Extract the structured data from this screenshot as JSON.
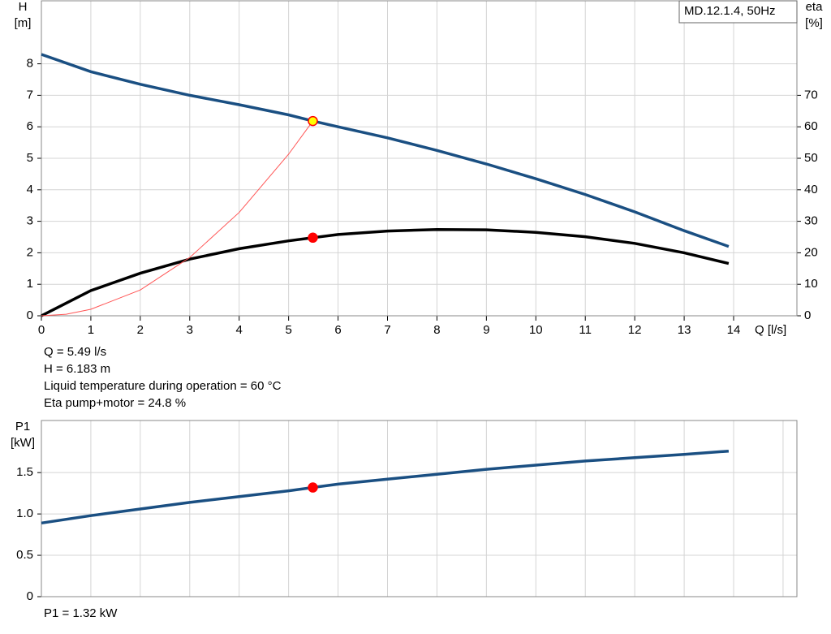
{
  "chart_data": [
    {
      "type": "line",
      "model": "MD.12.1.4, 50Hz",
      "x_label": "Q [l/s]",
      "y_label": [
        "H",
        "[m]"
      ],
      "y2_label": [
        "eta",
        "[%]"
      ],
      "xlim": [
        0,
        15.28
      ],
      "xticks": [
        0,
        1,
        2,
        3,
        4,
        5,
        6,
        7,
        8,
        9,
        10,
        11,
        12,
        13,
        14
      ],
      "x_tick_labels": true,
      "ylim": [
        0,
        10
      ],
      "yticks": [
        0,
        1,
        2,
        3,
        4,
        5,
        6,
        7,
        8
      ],
      "y2lim": [
        0,
        100
      ],
      "y2ticks": [
        0,
        10,
        20,
        30,
        40,
        50,
        60,
        70
      ],
      "grid": true,
      "series": [
        {
          "color": "#1a4f82",
          "width": 3.5,
          "x": [
            0,
            1,
            2,
            3,
            4,
            5,
            5.49,
            6,
            7,
            8,
            9,
            10,
            11,
            12,
            13,
            13.9
          ],
          "values": [
            8.3,
            7.75,
            7.35,
            7.0,
            6.7,
            6.38,
            6.183,
            6.0,
            5.65,
            5.25,
            4.82,
            4.35,
            3.85,
            3.3,
            2.7,
            2.2
          ]
        },
        {
          "color": "#000000",
          "width": 3.5,
          "axis": "y2",
          "x": [
            0,
            1,
            2,
            3,
            4,
            5,
            5.49,
            6,
            7,
            8,
            9,
            10,
            11,
            12,
            13,
            13.9
          ],
          "values": [
            0,
            8,
            13.5,
            18,
            21.3,
            23.8,
            24.8,
            25.8,
            26.9,
            27.4,
            27.3,
            26.5,
            25.1,
            23,
            20,
            16.6
          ]
        },
        {
          "color": "#ff5555",
          "width": 1,
          "x": [
            0,
            0.5,
            1,
            2,
            3,
            4,
            5,
            5.49
          ],
          "values": [
            0,
            0.05,
            0.205,
            0.82,
            1.85,
            3.28,
            5.13,
            6.183
          ]
        }
      ],
      "markers": [
        {
          "x": 5.49,
          "y": 6.183,
          "color": "#ffff00",
          "edge": "#ff0000"
        },
        {
          "x": 5.49,
          "y": 24.8,
          "axis": "y2",
          "color": "#ff0000",
          "edge": "#ff0000"
        }
      ],
      "annotations": [
        "Q = 5.49 l/s",
        "H = 6.183 m",
        "Liquid temperature during operation = 60 °C",
        "Eta pump+motor = 24.8 %"
      ]
    },
    {
      "type": "line",
      "y_label": [
        "P1",
        "[kW]"
      ],
      "xlim": [
        0,
        15.28
      ],
      "xticks": [
        0,
        1,
        2,
        3,
        4,
        5,
        6,
        7,
        8,
        9,
        10,
        11,
        12,
        13,
        14,
        15
      ],
      "x_tick_labels": false,
      "ylim": [
        0,
        2.13
      ],
      "yticks": [
        0,
        0.5,
        {
          "value": 1,
          "label": "1.0"
        },
        1.5
      ],
      "grid": true,
      "series": [
        {
          "color": "#1a4f82",
          "width": 3.5,
          "x": [
            0,
            1,
            2,
            3,
            4,
            5,
            5.49,
            6,
            7,
            8,
            9,
            10,
            11,
            12,
            13,
            13.9
          ],
          "values": [
            0.89,
            0.98,
            1.06,
            1.14,
            1.21,
            1.28,
            1.32,
            1.36,
            1.42,
            1.48,
            1.54,
            1.59,
            1.64,
            1.68,
            1.72,
            1.76
          ]
        }
      ],
      "markers": [
        {
          "x": 5.49,
          "y": 1.32,
          "color": "#ff0000",
          "edge": "#ff0000"
        }
      ],
      "annotations": [
        "P1 = 1.32 kW"
      ]
    }
  ]
}
